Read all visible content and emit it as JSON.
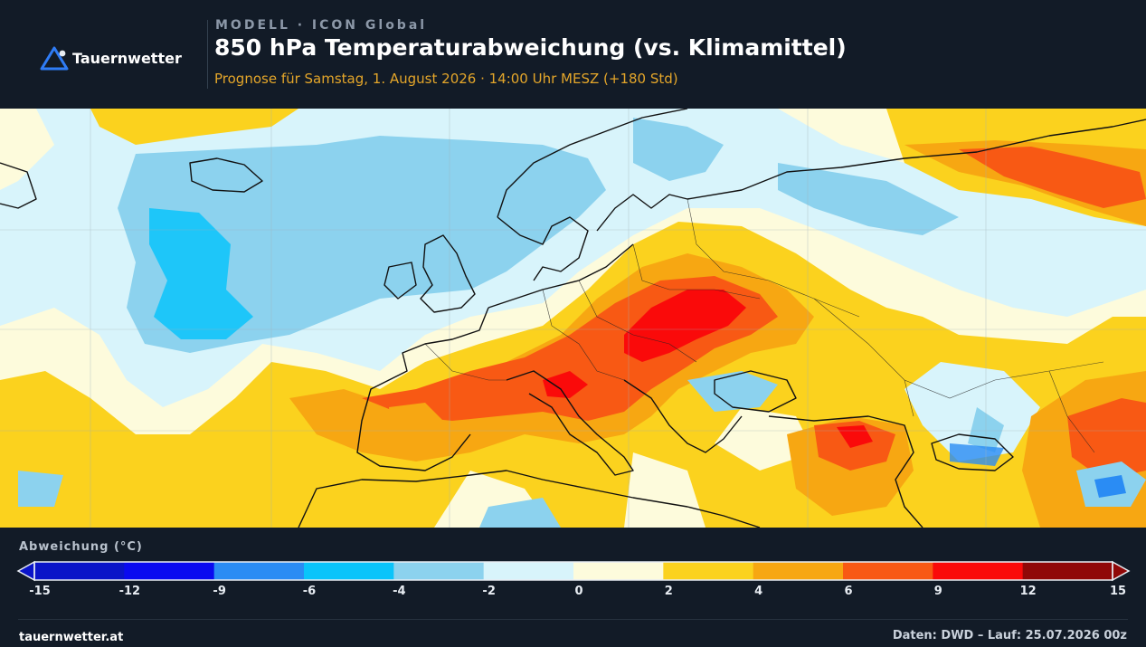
{
  "brand": {
    "name": "Tauernwetter",
    "logo_icon": "mountain-triangle-icon",
    "accent": "#2f7cf6"
  },
  "header": {
    "eyebrow": "MODELL · ICON Global",
    "title": "850 hPa Temperaturabweichung (vs. Klimamittel)",
    "subtitle": "Prognose für Samstag, 1. August 2026 · 14:00 Uhr MESZ  (+180 Std)"
  },
  "legend": {
    "title": "Abweichung (°C)",
    "ticks": [
      "-15",
      "-12",
      "-9",
      "-6",
      "-4",
      "-2",
      "0",
      "2",
      "4",
      "6",
      "9",
      "12",
      "15"
    ],
    "colors": [
      "#0a14c8",
      "#0a0af0",
      "#2a8cf4",
      "#0ac4fa",
      "#8cd2ee",
      "#d8f4fb",
      "#fdfbdc",
      "#fbd21e",
      "#f7a712",
      "#f85914",
      "#fa0a0a",
      "#900808"
    ]
  },
  "footer": {
    "site": "tauernwetter.at",
    "source": "Daten: DWD – Lauf: 25.07.2026 00z"
  }
}
